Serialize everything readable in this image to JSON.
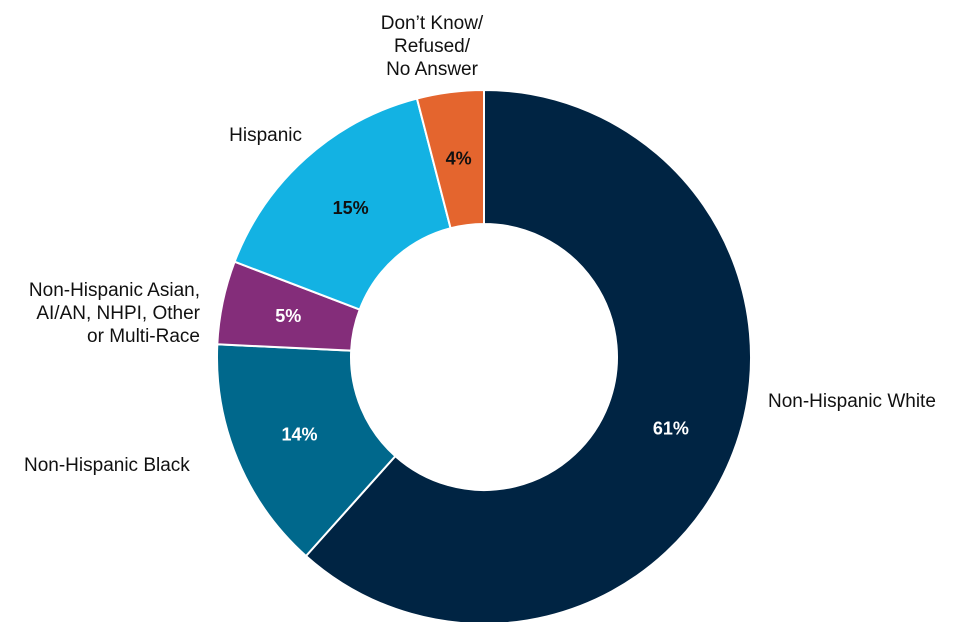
{
  "chart_data": {
    "type": "pie",
    "title": "",
    "categories": [
      "Non-Hispanic White",
      "Non-Hispanic Black",
      "Non-Hispanic Asian, AI/AN, NHPI, Other or Multi-Race",
      "Hispanic",
      "Don’t Know/ Refused/ No Answer"
    ],
    "values": [
      61,
      14,
      5,
      15,
      4
    ],
    "value_labels": [
      "61%",
      "14%",
      "5%",
      "15%",
      "4%"
    ],
    "label_lines": [
      [
        "Non-Hispanic White"
      ],
      [
        "Non-Hispanic Black"
      ],
      [
        "Non-Hispanic Asian,",
        "AI/AN, NHPI, Other",
        "or Multi-Race"
      ],
      [
        "Hispanic"
      ],
      [
        "Don’t Know/",
        "Refused/",
        "No Answer"
      ]
    ],
    "colors": [
      "#002443",
      "#00688c",
      "#842d7a",
      "#13b2e3",
      "#e4652e"
    ],
    "value_label_colors": [
      "#ffffff",
      "#ffffff",
      "#ffffff",
      "#111111",
      "#111111"
    ],
    "donut": true,
    "legend": "none"
  }
}
